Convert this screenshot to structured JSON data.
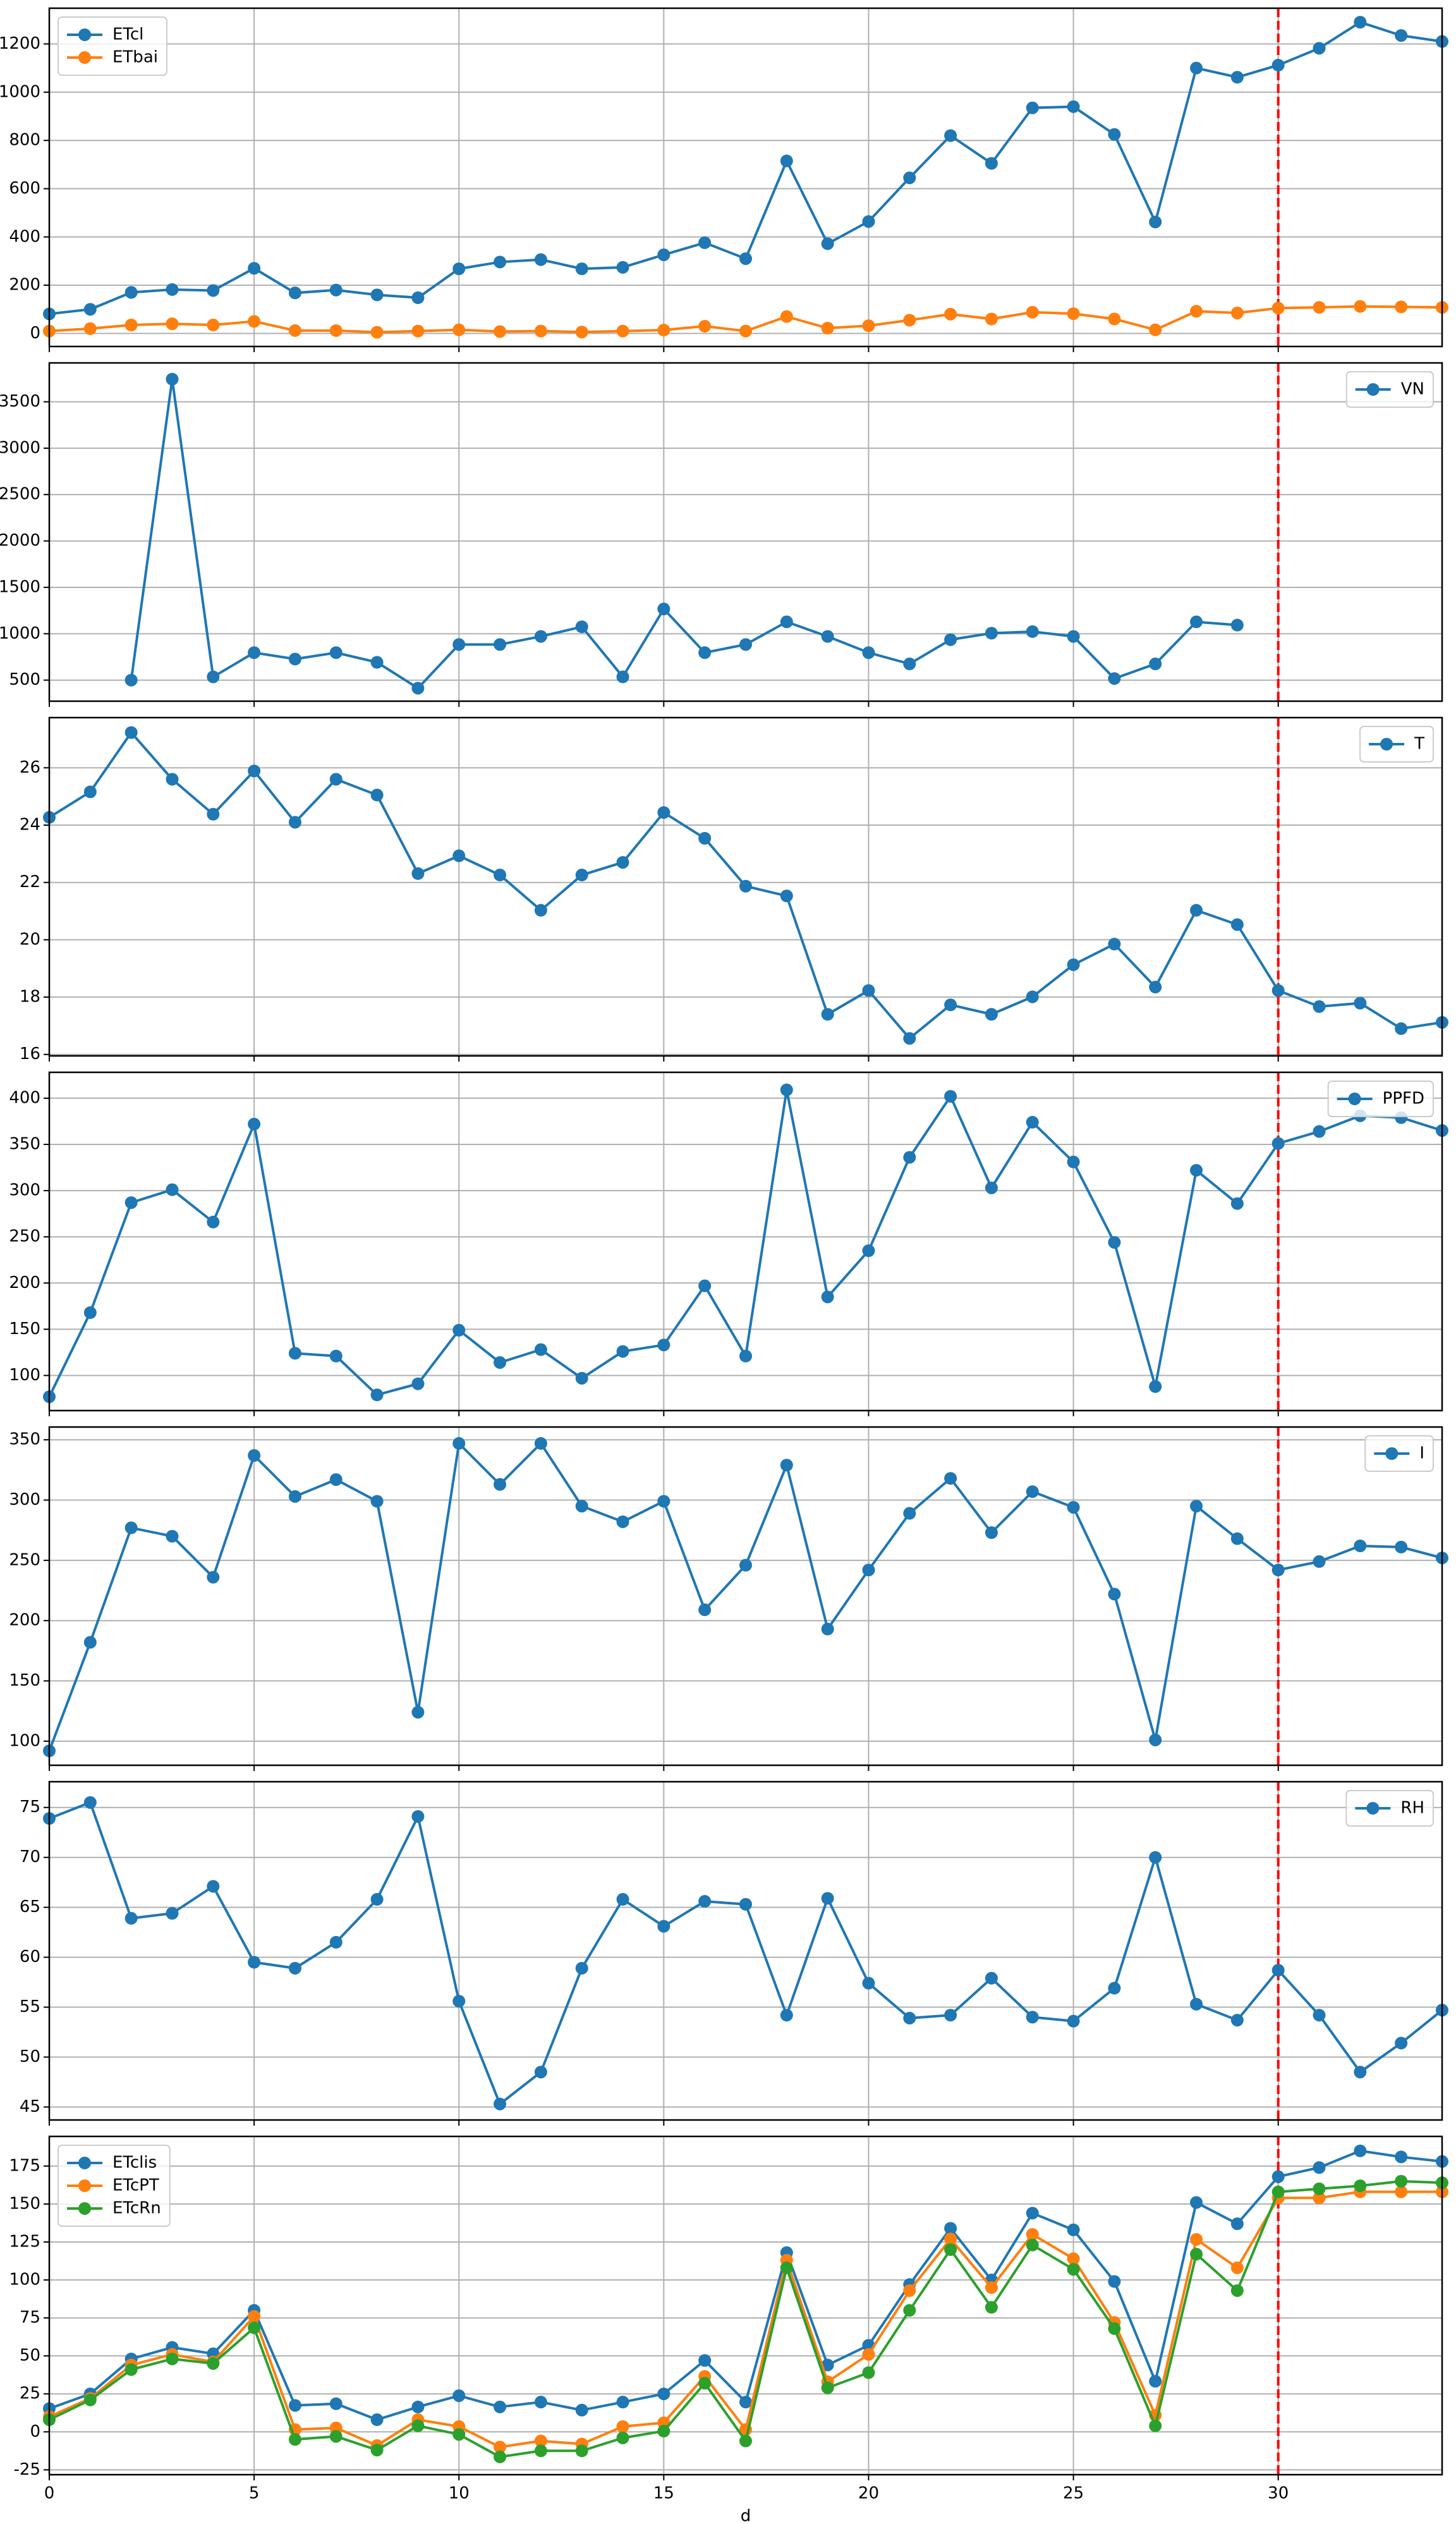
{
  "chart_data": [
    {
      "type": "line",
      "grid": true,
      "legend": "upper left",
      "vline_x": 30,
      "vline_color": "#ff0000",
      "x": [
        0,
        1,
        2,
        3,
        4,
        5,
        6,
        7,
        8,
        9,
        10,
        11,
        12,
        13,
        14,
        15,
        16,
        17,
        18,
        19,
        20,
        21,
        22,
        23,
        24,
        25,
        26,
        27,
        28,
        29,
        30,
        31,
        32,
        33,
        34
      ],
      "xlim": [
        0,
        34
      ],
      "xticks": [
        0,
        5,
        10,
        15,
        20,
        25,
        30
      ],
      "ylim": [
        -54,
        1348
      ],
      "yticks": [
        0,
        200,
        400,
        600,
        800,
        1000,
        1200
      ],
      "series": [
        {
          "name": "ETcl",
          "color": "#1f77b4",
          "values": [
            81,
            100,
            170,
            182,
            178,
            270,
            168,
            180,
            160,
            148,
            268,
            296,
            306,
            268,
            274,
            326,
            376,
            310,
            715,
            372,
            464,
            645,
            820,
            705,
            935,
            940,
            825,
            462,
            1100,
            1062,
            1112,
            1182,
            1290,
            1235,
            1210
          ]
        },
        {
          "name": "ETbai",
          "color": "#ff7f0e",
          "values": [
            10,
            20,
            35,
            40,
            35,
            50,
            12,
            12,
            5,
            10,
            15,
            8,
            10,
            6,
            10,
            14,
            30,
            10,
            70,
            22,
            32,
            55,
            80,
            60,
            88,
            82,
            60,
            15,
            92,
            85,
            105,
            108,
            112,
            110,
            108
          ]
        }
      ]
    },
    {
      "type": "line",
      "grid": true,
      "legend": "upper right",
      "vline_x": 30,
      "vline_color": "#ff0000",
      "x": [
        0,
        1,
        2,
        3,
        4,
        5,
        6,
        7,
        8,
        9,
        10,
        11,
        12,
        13,
        14,
        15,
        16,
        17,
        18,
        19,
        20,
        21,
        22,
        23,
        24,
        25,
        26,
        27,
        28,
        29,
        30,
        31,
        32,
        33,
        34
      ],
      "xlim": [
        0,
        34
      ],
      "xticks": [
        0,
        5,
        10,
        15,
        20,
        25,
        30
      ],
      "ylim": [
        273,
        3919
      ],
      "yticks": [
        500,
        1000,
        1500,
        2000,
        2500,
        3000,
        3500
      ],
      "series": [
        {
          "name": "VN",
          "color": "#1f77b4",
          "values": [
            null,
            null,
            500,
            3744,
            535,
            796,
            727,
            796,
            692,
            413,
            884,
            884,
            971,
            1075,
            535,
            1267,
            796,
            884,
            1128,
            971,
            796,
            675,
            936,
            1006,
            1023,
            971,
            517,
            675,
            1128,
            1093,
            null,
            null,
            null,
            null,
            null
          ]
        }
      ]
    },
    {
      "type": "line",
      "grid": true,
      "legend": "upper right",
      "vline_x": 30,
      "vline_color": "#ff0000",
      "x": [
        0,
        1,
        2,
        3,
        4,
        5,
        6,
        7,
        8,
        9,
        10,
        11,
        12,
        13,
        14,
        15,
        16,
        17,
        18,
        19,
        20,
        21,
        22,
        23,
        24,
        25,
        26,
        27,
        28,
        29,
        30,
        31,
        32,
        33,
        34
      ],
      "xlim": [
        0,
        34
      ],
      "xticks": [
        0,
        5,
        10,
        15,
        20,
        25,
        30
      ],
      "ylim": [
        15.95,
        27.75
      ],
      "yticks": [
        16,
        18,
        20,
        22,
        24,
        26
      ],
      "series": [
        {
          "name": "T",
          "color": "#1f77b4",
          "values": [
            24.27,
            25.16,
            27.23,
            25.6,
            24.38,
            25.89,
            24.1,
            25.6,
            25.05,
            22.31,
            22.93,
            22.26,
            21.03,
            22.26,
            22.7,
            24.44,
            23.54,
            21.87,
            21.53,
            17.4,
            18.23,
            16.56,
            17.73,
            17.4,
            18.01,
            19.13,
            19.85,
            18.35,
            21.03,
            20.53,
            18.23,
            17.67,
            17.79,
            16.9,
            17.12
          ]
        }
      ]
    },
    {
      "type": "line",
      "grid": true,
      "legend": "upper right",
      "vline_x": 30,
      "vline_color": "#ff0000",
      "x": [
        0,
        1,
        2,
        3,
        4,
        5,
        6,
        7,
        8,
        9,
        10,
        11,
        12,
        13,
        14,
        15,
        16,
        17,
        18,
        19,
        20,
        21,
        22,
        23,
        24,
        25,
        26,
        27,
        28,
        29,
        30,
        31,
        32,
        33,
        34
      ],
      "xlim": [
        0,
        34
      ],
      "xticks": [
        0,
        5,
        10,
        15,
        20,
        25,
        30
      ],
      "ylim": [
        62,
        428
      ],
      "yticks": [
        100,
        150,
        200,
        250,
        300,
        350,
        400
      ],
      "series": [
        {
          "name": "PPFD",
          "color": "#1f77b4",
          "values": [
            77,
            168,
            287,
            301,
            266,
            372,
            124,
            121,
            79,
            91,
            149,
            114,
            128,
            97,
            126,
            133,
            197,
            121,
            409,
            185,
            235,
            336,
            402,
            303,
            374,
            331,
            244,
            88,
            322,
            286,
            351,
            364,
            381,
            379,
            365
          ]
        }
      ]
    },
    {
      "type": "line",
      "grid": true,
      "legend": "upper right",
      "vline_x": 30,
      "vline_color": "#ff0000",
      "x": [
        0,
        1,
        2,
        3,
        4,
        5,
        6,
        7,
        8,
        9,
        10,
        11,
        12,
        13,
        14,
        15,
        16,
        17,
        18,
        19,
        20,
        21,
        22,
        23,
        24,
        25,
        26,
        27,
        28,
        29,
        30,
        31,
        32,
        33,
        34
      ],
      "xlim": [
        0,
        34
      ],
      "xticks": [
        0,
        5,
        10,
        15,
        20,
        25,
        30
      ],
      "ylim": [
        80,
        360.6
      ],
      "yticks": [
        100,
        150,
        200,
        250,
        300,
        350
      ],
      "series": [
        {
          "name": "I",
          "color": "#1f77b4",
          "values": [
            92,
            182,
            277,
            270,
            236,
            337,
            303,
            317,
            299,
            124,
            347,
            313,
            347,
            295,
            282,
            299,
            209,
            246,
            329,
            193,
            242,
            289,
            318,
            273,
            307,
            294,
            222,
            101,
            295,
            268,
            242,
            249,
            262,
            261,
            252
          ]
        }
      ]
    },
    {
      "type": "line",
      "grid": true,
      "legend": "upper right",
      "vline_x": 30,
      "vline_color": "#ff0000",
      "x": [
        0,
        1,
        2,
        3,
        4,
        5,
        6,
        7,
        8,
        9,
        10,
        11,
        12,
        13,
        14,
        15,
        16,
        17,
        18,
        19,
        20,
        21,
        22,
        23,
        24,
        25,
        26,
        27,
        28,
        29,
        30,
        31,
        32,
        33,
        34
      ],
      "xlim": [
        0,
        34
      ],
      "xticks": [
        0,
        5,
        10,
        15,
        20,
        25,
        30
      ],
      "ylim": [
        43.7,
        77.58
      ],
      "yticks": [
        45,
        50,
        55,
        60,
        65,
        70,
        75
      ],
      "series": [
        {
          "name": "RH",
          "color": "#1f77b4",
          "values": [
            73.9,
            75.5,
            63.9,
            64.4,
            67.1,
            59.5,
            58.9,
            61.5,
            65.8,
            74.1,
            55.6,
            45.3,
            48.5,
            58.9,
            65.8,
            63.1,
            65.6,
            65.3,
            54.2,
            65.9,
            57.4,
            53.9,
            54.2,
            57.9,
            54.0,
            53.6,
            56.9,
            70.0,
            55.3,
            53.7,
            58.7,
            54.2,
            48.5,
            51.4,
            54.7
          ]
        }
      ]
    },
    {
      "type": "line",
      "grid": true,
      "legend": "upper left",
      "vline_x": 30,
      "vline_color": "#ff0000",
      "xlabel": "d",
      "x": [
        0,
        1,
        2,
        3,
        4,
        5,
        6,
        7,
        8,
        9,
        10,
        11,
        12,
        13,
        14,
        15,
        16,
        17,
        18,
        19,
        20,
        21,
        22,
        23,
        24,
        25,
        26,
        27,
        28,
        29,
        30,
        31,
        32,
        33,
        34
      ],
      "xlim": [
        0,
        34
      ],
      "xticks": [
        0,
        5,
        10,
        15,
        20,
        25,
        30
      ],
      "ylim": [
        -28.2,
        194.5
      ],
      "yticks": [
        -25,
        0,
        25,
        50,
        75,
        100,
        125,
        150,
        175
      ],
      "series": [
        {
          "name": "ETclis",
          "color": "#1f77b4",
          "values": [
            15.3,
            25,
            48,
            55.6,
            51.4,
            80,
            17.4,
            18.5,
            8,
            16.4,
            23.8,
            16.4,
            19.6,
            14.3,
            19.6,
            25,
            47,
            19.6,
            118,
            44,
            57,
            97,
            134,
            100,
            144,
            133,
            99,
            33.3,
            151,
            137,
            168,
            174,
            185,
            181,
            178
          ]
        },
        {
          "name": "ETcPT",
          "color": "#ff7f0e",
          "values": [
            10,
            22,
            44,
            51,
            46,
            76,
            1.5,
            2.6,
            -9,
            8,
            3.5,
            -10,
            -6,
            -8,
            3.5,
            6,
            36.5,
            1.5,
            113,
            33,
            51,
            93,
            127,
            95,
            130,
            114,
            72,
            11,
            126.7,
            108,
            154,
            154,
            158,
            158,
            158
          ]
        },
        {
          "name": "ETcRn",
          "color": "#2ca02c",
          "values": [
            8,
            21,
            41,
            48,
            45,
            68.5,
            -5,
            -3,
            -12,
            4,
            -1.7,
            -16.5,
            -12.5,
            -12.5,
            -4,
            0.5,
            32,
            -6,
            108,
            29,
            39,
            80,
            120,
            82,
            123,
            107,
            68,
            4,
            117,
            93,
            158,
            160,
            162,
            165,
            164
          ]
        }
      ]
    }
  ]
}
